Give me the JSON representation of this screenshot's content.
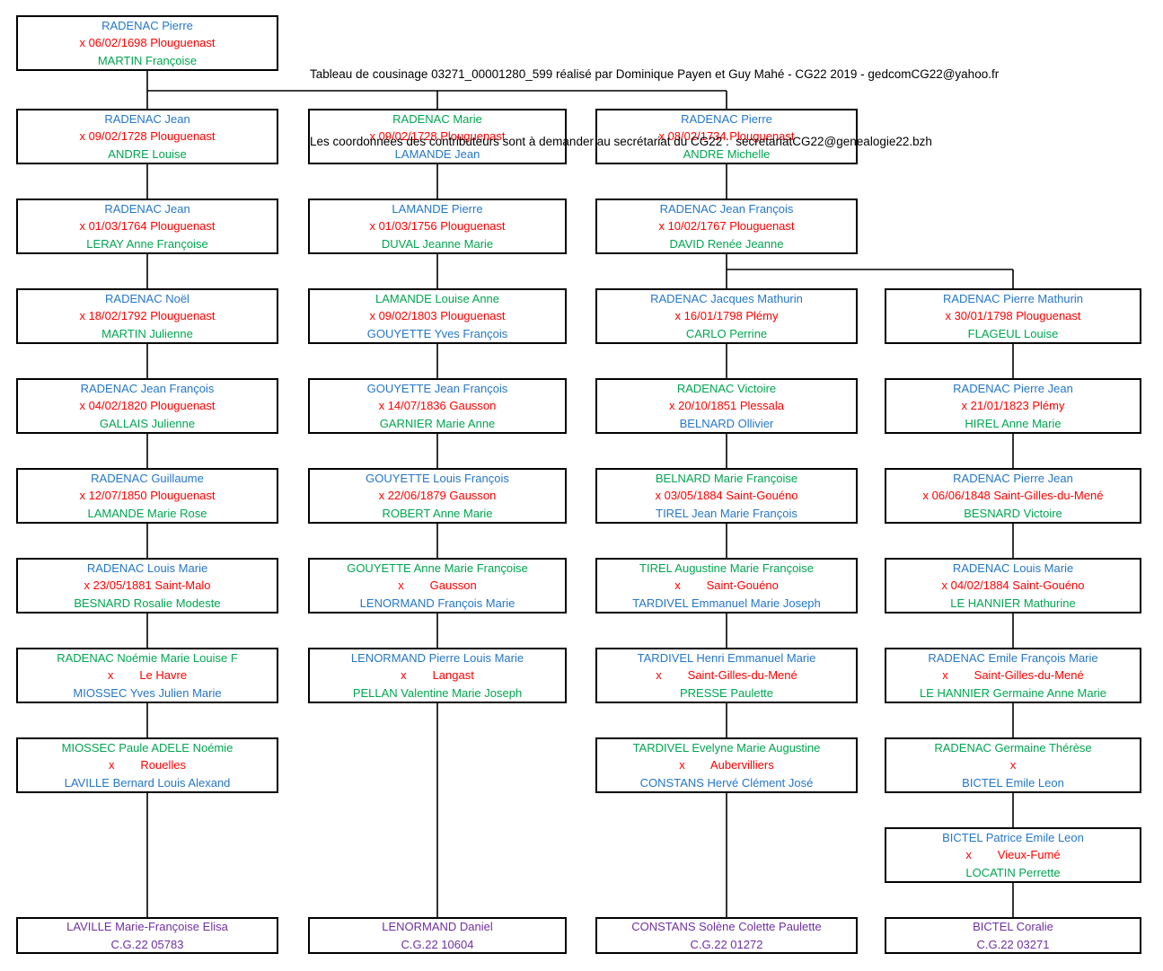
{
  "header": {
    "line1": "Tableau de cousinage 03271_00001280_599 réalisé par Dominique Payen et Guy Mahé - CG22 2019 - gedcomCG22@yahoo.fr",
    "line2": "Les coordonnées des contributeurs sont à demander au secrétariat du CG22 :  secretariatCG22@genealogie22.bzh"
  },
  "palette": {
    "blue": "#2577c8",
    "green": "#00a651",
    "red": "#ff0000",
    "purple": "#7030a0",
    "line": "#000000"
  },
  "tree": {
    "columns": 4,
    "boxes": [
      {
        "col": 0,
        "row": 0,
        "lines": [
          {
            "text": "RADENAC Pierre",
            "c": "blue"
          },
          {
            "text": "x 06/02/1698 Plouguenast",
            "c": "red"
          },
          {
            "text": "MARTIN Françoise",
            "c": "green"
          }
        ]
      },
      {
        "col": 0,
        "row": 1,
        "lines": [
          {
            "text": "RADENAC Jean",
            "c": "blue"
          },
          {
            "text": "x 09/02/1728 Plouguenast",
            "c": "red"
          },
          {
            "text": "ANDRE Louise",
            "c": "green"
          }
        ]
      },
      {
        "col": 0,
        "row": 2,
        "lines": [
          {
            "text": "RADENAC Jean",
            "c": "blue"
          },
          {
            "text": "x 01/03/1764 Plouguenast",
            "c": "red"
          },
          {
            "text": "LERAY Anne Françoise",
            "c": "green"
          }
        ]
      },
      {
        "col": 0,
        "row": 3,
        "lines": [
          {
            "text": "RADENAC Noël",
            "c": "blue"
          },
          {
            "text": "x 18/02/1792 Plouguenast",
            "c": "red"
          },
          {
            "text": "MARTIN Julienne",
            "c": "green"
          }
        ]
      },
      {
        "col": 0,
        "row": 4,
        "lines": [
          {
            "text": "RADENAC Jean François",
            "c": "blue"
          },
          {
            "text": "x 04/02/1820 Plouguenast",
            "c": "red"
          },
          {
            "text": "GALLAIS Julienne",
            "c": "green"
          }
        ]
      },
      {
        "col": 0,
        "row": 5,
        "lines": [
          {
            "text": "RADENAC Guillaume",
            "c": "blue"
          },
          {
            "text": "x 12/07/1850 Plouguenast",
            "c": "red"
          },
          {
            "text": "LAMANDE Marie Rose",
            "c": "green"
          }
        ]
      },
      {
        "col": 0,
        "row": 6,
        "lines": [
          {
            "text": "RADENAC Louis Marie",
            "c": "blue"
          },
          {
            "text": "x 23/05/1881 Saint-Malo",
            "c": "red"
          },
          {
            "text": "BESNARD Rosalie Modeste",
            "c": "green"
          }
        ]
      },
      {
        "col": 0,
        "row": 7,
        "lines": [
          {
            "text": "RADENAC Noémie Marie Louise F",
            "c": "green"
          },
          {
            "text": "x        Le Havre",
            "c": "red"
          },
          {
            "text": "MIOSSEC Yves Julien Marie",
            "c": "blue"
          }
        ]
      },
      {
        "col": 0,
        "row": 8,
        "lines": [
          {
            "text": "MIOSSEC Paule ADELE Noémie",
            "c": "green"
          },
          {
            "text": "x        Rouelles",
            "c": "red"
          },
          {
            "text": "LAVILLE Bernard Louis Alexand",
            "c": "blue"
          }
        ]
      },
      {
        "col": 0,
        "row": 10,
        "lines": [
          {
            "text": "LAVILLE Marie-Françoise Elisa",
            "c": "purple"
          },
          {
            "text": "C.G.22 05783",
            "c": "purple"
          }
        ]
      },
      {
        "col": 1,
        "row": 1,
        "lines": [
          {
            "text": "RADENAC Marie",
            "c": "green"
          },
          {
            "text": "x 09/02/1728 Plouguenast",
            "c": "red"
          },
          {
            "text": "LAMANDE Jean",
            "c": "blue"
          }
        ]
      },
      {
        "col": 1,
        "row": 2,
        "lines": [
          {
            "text": "LAMANDE Pierre",
            "c": "blue"
          },
          {
            "text": "x 01/03/1756 Plouguenast",
            "c": "red"
          },
          {
            "text": "DUVAL Jeanne Marie",
            "c": "green"
          }
        ]
      },
      {
        "col": 1,
        "row": 3,
        "lines": [
          {
            "text": "LAMANDE Louise Anne",
            "c": "green"
          },
          {
            "text": "x 09/02/1803 Plouguenast",
            "c": "red"
          },
          {
            "text": "GOUYETTE Yves François",
            "c": "blue"
          }
        ]
      },
      {
        "col": 1,
        "row": 4,
        "lines": [
          {
            "text": "GOUYETTE Jean François",
            "c": "blue"
          },
          {
            "text": "x 14/07/1836 Gausson",
            "c": "red"
          },
          {
            "text": "GARNIER Marie Anne",
            "c": "green"
          }
        ]
      },
      {
        "col": 1,
        "row": 5,
        "lines": [
          {
            "text": "GOUYETTE Louis François",
            "c": "blue"
          },
          {
            "text": "x 22/06/1879 Gausson",
            "c": "red"
          },
          {
            "text": "ROBERT Anne Marie",
            "c": "green"
          }
        ]
      },
      {
        "col": 1,
        "row": 6,
        "lines": [
          {
            "text": "GOUYETTE Anne Marie Françoise",
            "c": "green"
          },
          {
            "text": "x        Gausson",
            "c": "red"
          },
          {
            "text": "LENORMAND François Marie",
            "c": "blue"
          }
        ]
      },
      {
        "col": 1,
        "row": 7,
        "lines": [
          {
            "text": "LENORMAND Pierre Louis Marie",
            "c": "blue"
          },
          {
            "text": "x        Langast",
            "c": "red"
          },
          {
            "text": "PELLAN Valentine Marie Joseph",
            "c": "green"
          }
        ]
      },
      {
        "col": 1,
        "row": 10,
        "lines": [
          {
            "text": "LENORMAND Daniel",
            "c": "purple"
          },
          {
            "text": "C.G.22 10604",
            "c": "purple"
          }
        ]
      },
      {
        "col": 2,
        "row": 1,
        "lines": [
          {
            "text": "RADENAC Pierre",
            "c": "blue"
          },
          {
            "text": "x 08/02/1734 Plouguenast",
            "c": "red"
          },
          {
            "text": "ANDRE Michelle",
            "c": "green"
          }
        ]
      },
      {
        "col": 2,
        "row": 2,
        "lines": [
          {
            "text": "RADENAC Jean François",
            "c": "blue"
          },
          {
            "text": "x 10/02/1767 Plouguenast",
            "c": "red"
          },
          {
            "text": "DAVID Renée Jeanne",
            "c": "green"
          }
        ]
      },
      {
        "col": 2,
        "row": 3,
        "lines": [
          {
            "text": "RADENAC Jacques Mathurin",
            "c": "blue"
          },
          {
            "text": "x 16/01/1798 Plémy",
            "c": "red"
          },
          {
            "text": "CARLO Perrine",
            "c": "green"
          }
        ]
      },
      {
        "col": 2,
        "row": 4,
        "lines": [
          {
            "text": "RADENAC Victoire",
            "c": "green"
          },
          {
            "text": "x 20/10/1851 Plessala",
            "c": "red"
          },
          {
            "text": "BELNARD Ollivier",
            "c": "blue"
          }
        ]
      },
      {
        "col": 2,
        "row": 5,
        "lines": [
          {
            "text": "BELNARD Marie Françoise",
            "c": "green"
          },
          {
            "text": "x 03/05/1884 Saint-Gouéno",
            "c": "red"
          },
          {
            "text": "TIREL Jean Marie François",
            "c": "blue"
          }
        ]
      },
      {
        "col": 2,
        "row": 6,
        "lines": [
          {
            "text": "TIREL Augustine Marie Françoise",
            "c": "green"
          },
          {
            "text": "x        Saint-Gouéno",
            "c": "red"
          },
          {
            "text": "TARDIVEL Emmanuel Marie Joseph",
            "c": "blue"
          }
        ]
      },
      {
        "col": 2,
        "row": 7,
        "lines": [
          {
            "text": "TARDIVEL Henri Emmanuel Marie",
            "c": "blue"
          },
          {
            "text": "x        Saint-Gilles-du-Mené",
            "c": "red"
          },
          {
            "text": "PRESSE Paulette",
            "c": "green"
          }
        ]
      },
      {
        "col": 2,
        "row": 8,
        "lines": [
          {
            "text": "TARDIVEL Evelyne Marie Augustine",
            "c": "green"
          },
          {
            "text": "x        Aubervilliers",
            "c": "red"
          },
          {
            "text": "CONSTANS Hervé Clément José",
            "c": "blue"
          }
        ]
      },
      {
        "col": 2,
        "row": 10,
        "lines": [
          {
            "text": "CONSTANS Solène Colette Paulette",
            "c": "purple"
          },
          {
            "text": "C.G.22 01272",
            "c": "purple"
          }
        ]
      },
      {
        "col": 3,
        "row": 3,
        "lines": [
          {
            "text": "RADENAC Pierre Mathurin",
            "c": "blue"
          },
          {
            "text": "x 30/01/1798 Plouguenast",
            "c": "red"
          },
          {
            "text": "FLAGEUL Louise",
            "c": "green"
          }
        ]
      },
      {
        "col": 3,
        "row": 4,
        "lines": [
          {
            "text": "RADENAC Pierre Jean",
            "c": "blue"
          },
          {
            "text": "x 21/01/1823 Plémy",
            "c": "red"
          },
          {
            "text": "HIREL Anne Marie",
            "c": "green"
          }
        ]
      },
      {
        "col": 3,
        "row": 5,
        "lines": [
          {
            "text": "RADENAC Pierre Jean",
            "c": "blue"
          },
          {
            "text": "x 06/06/1848 Saint-Gilles-du-Mené",
            "c": "red"
          },
          {
            "text": "BESNARD Victoire",
            "c": "green"
          }
        ]
      },
      {
        "col": 3,
        "row": 6,
        "lines": [
          {
            "text": "RADENAC Louis Marie",
            "c": "blue"
          },
          {
            "text": "x 04/02/1884 Saint-Gouéno",
            "c": "red"
          },
          {
            "text": "LE HANNIER Mathurine",
            "c": "green"
          }
        ]
      },
      {
        "col": 3,
        "row": 7,
        "lines": [
          {
            "text": "RADENAC Emile François Marie",
            "c": "blue"
          },
          {
            "text": "x        Saint-Gilles-du-Mené",
            "c": "red"
          },
          {
            "text": "LE HANNIER Germaine Anne Marie",
            "c": "green"
          }
        ]
      },
      {
        "col": 3,
        "row": 8,
        "lines": [
          {
            "text": "RADENAC Germaine Thérèse",
            "c": "green"
          },
          {
            "text": "x",
            "c": "red"
          },
          {
            "text": "BICTEL Emile Leon",
            "c": "blue"
          }
        ]
      },
      {
        "col": 3,
        "row": 9,
        "lines": [
          {
            "text": "BICTEL Patrice Emile Leon",
            "c": "blue"
          },
          {
            "text": "x        Vieux-Fumé",
            "c": "red"
          },
          {
            "text": "LOCATIN Perrette",
            "c": "green"
          }
        ]
      },
      {
        "col": 3,
        "row": 10,
        "lines": [
          {
            "text": "BICTEL Coralie",
            "c": "purple"
          },
          {
            "text": "C.G.22 03271",
            "c": "purple"
          }
        ]
      }
    ]
  }
}
